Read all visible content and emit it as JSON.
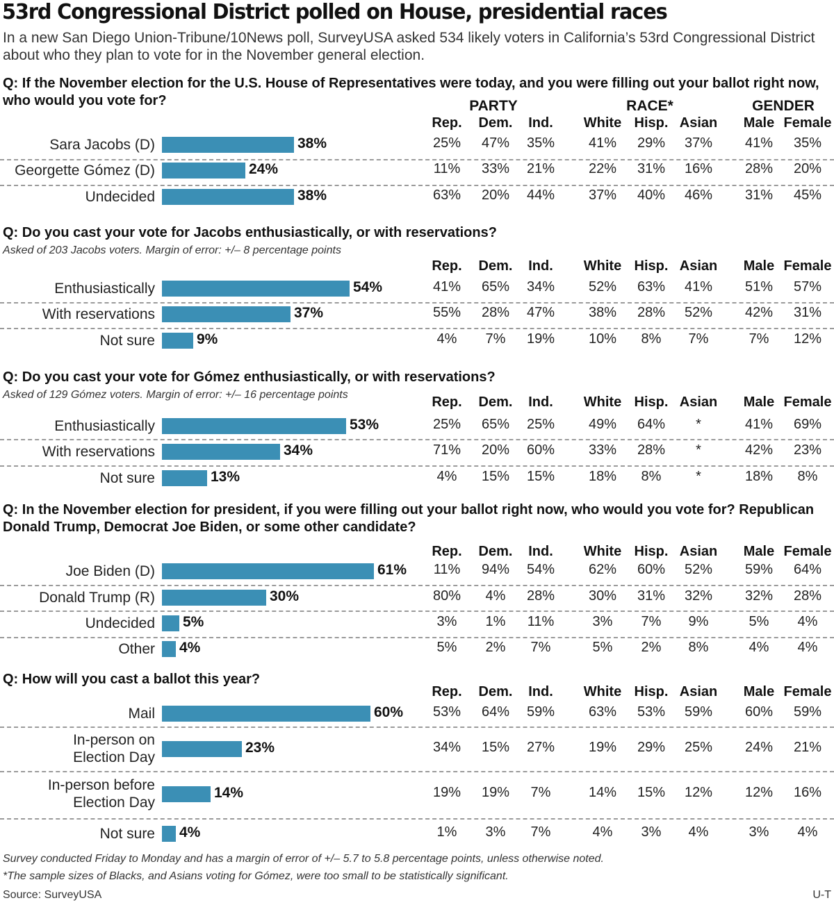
{
  "title": "53rd Congressional District polled on House, presidential races",
  "subtitle": "In a new San Diego Union-Tribune/10News poll, SurveyUSA asked 534 likely voters in California’s 53rd Congressional District about who they plan to vote for in the November general election.",
  "group_headers": [
    "PARTY",
    "RACE*",
    "GENDER"
  ],
  "column_headers": [
    "Rep.",
    "Dem.",
    "Ind.",
    "White",
    "Hisp.",
    "Asian",
    "Male",
    "Female"
  ],
  "footnotes": [
    "Survey conducted Friday to Monday and has a margin of error of +/– 5.7 to 5.8 percentage points, unless otherwise noted.",
    "*The sample sizes of Blacks, and Asians voting for Gómez, were too small to be statistically significant."
  ],
  "source": "Source: SurveyUSA",
  "credit": "U-T",
  "bar_color": "#3b8fb5",
  "chart_data": [
    {
      "type": "bar",
      "question": "Q: If the November election for the U.S. House of Representatives were today, and you were filling out your ballot right now, who would you vote for?",
      "note": "",
      "categories": [
        "Sara Jacobs (D)",
        "Georgette Gómez (D)",
        "Undecided"
      ],
      "values": [
        38,
        24,
        38
      ],
      "value_labels": [
        "38%",
        "24%",
        "38%"
      ],
      "breakdown": [
        [
          "25%",
          "47%",
          "35%",
          "41%",
          "29%",
          "37%",
          "41%",
          "35%"
        ],
        [
          "11%",
          "33%",
          "21%",
          "22%",
          "31%",
          "16%",
          "28%",
          "20%"
        ],
        [
          "63%",
          "20%",
          "44%",
          "37%",
          "40%",
          "46%",
          "31%",
          "45%"
        ]
      ]
    },
    {
      "type": "bar",
      "question": "Q: Do you cast your vote for Jacobs enthusiastically, or with reservations?",
      "note": "Asked of 203 Jacobs voters. Margin of error: +/– 8 percentage points",
      "categories": [
        "Enthusiastically",
        "With reservations",
        "Not sure"
      ],
      "values": [
        54,
        37,
        9
      ],
      "value_labels": [
        "54%",
        "37%",
        "9%"
      ],
      "breakdown": [
        [
          "41%",
          "65%",
          "34%",
          "52%",
          "63%",
          "41%",
          "51%",
          "57%"
        ],
        [
          "55%",
          "28%",
          "47%",
          "38%",
          "28%",
          "52%",
          "42%",
          "31%"
        ],
        [
          "4%",
          "7%",
          "19%",
          "10%",
          "8%",
          "7%",
          "7%",
          "12%"
        ]
      ]
    },
    {
      "type": "bar",
      "question": "Q: Do you cast your vote for Gómez enthusiastically, or with reservations?",
      "note": "Asked of 129 Gómez voters. Margin of error: +/– 16 percentage points",
      "categories": [
        "Enthusiastically",
        "With reservations",
        "Not sure"
      ],
      "values": [
        53,
        34,
        13
      ],
      "value_labels": [
        "53%",
        "34%",
        "13%"
      ],
      "breakdown": [
        [
          "25%",
          "65%",
          "25%",
          "49%",
          "64%",
          "*",
          "41%",
          "69%"
        ],
        [
          "71%",
          "20%",
          "60%",
          "33%",
          "28%",
          "*",
          "42%",
          "23%"
        ],
        [
          "4%",
          "15%",
          "15%",
          "18%",
          "8%",
          "*",
          "18%",
          "8%"
        ]
      ]
    },
    {
      "type": "bar",
      "question": "Q: In the November election for president, if you were filling out your ballot right now, who would you vote for? Republican Donald Trump, Democrat Joe Biden, or some other candidate?",
      "note": "",
      "categories": [
        "Joe Biden (D)",
        "Donald Trump (R)",
        "Undecided",
        "Other"
      ],
      "values": [
        61,
        30,
        5,
        4
      ],
      "value_labels": [
        "61%",
        "30%",
        "5%",
        "4%"
      ],
      "breakdown": [
        [
          "11%",
          "94%",
          "54%",
          "62%",
          "60%",
          "52%",
          "59%",
          "64%"
        ],
        [
          "80%",
          "4%",
          "28%",
          "30%",
          "31%",
          "32%",
          "32%",
          "28%"
        ],
        [
          "3%",
          "1%",
          "11%",
          "3%",
          "7%",
          "9%",
          "5%",
          "4%"
        ],
        [
          "5%",
          "2%",
          "7%",
          "5%",
          "2%",
          "8%",
          "4%",
          "4%"
        ]
      ]
    },
    {
      "type": "bar",
      "question": "Q: How will you cast a ballot this year?",
      "note": "",
      "categories": [
        "Mail",
        "In-person on\nElection Day",
        "In-person before\nElection Day",
        "Not sure"
      ],
      "values": [
        60,
        23,
        14,
        4
      ],
      "value_labels": [
        "60%",
        "23%",
        "14%",
        "4%"
      ],
      "breakdown": [
        [
          "53%",
          "64%",
          "59%",
          "63%",
          "53%",
          "59%",
          "60%",
          "59%"
        ],
        [
          "34%",
          "15%",
          "27%",
          "19%",
          "29%",
          "25%",
          "24%",
          "21%"
        ],
        [
          "19%",
          "19%",
          "7%",
          "14%",
          "15%",
          "12%",
          "12%",
          "16%"
        ],
        [
          "1%",
          "3%",
          "7%",
          "4%",
          "3%",
          "4%",
          "3%",
          "4%"
        ]
      ]
    }
  ]
}
